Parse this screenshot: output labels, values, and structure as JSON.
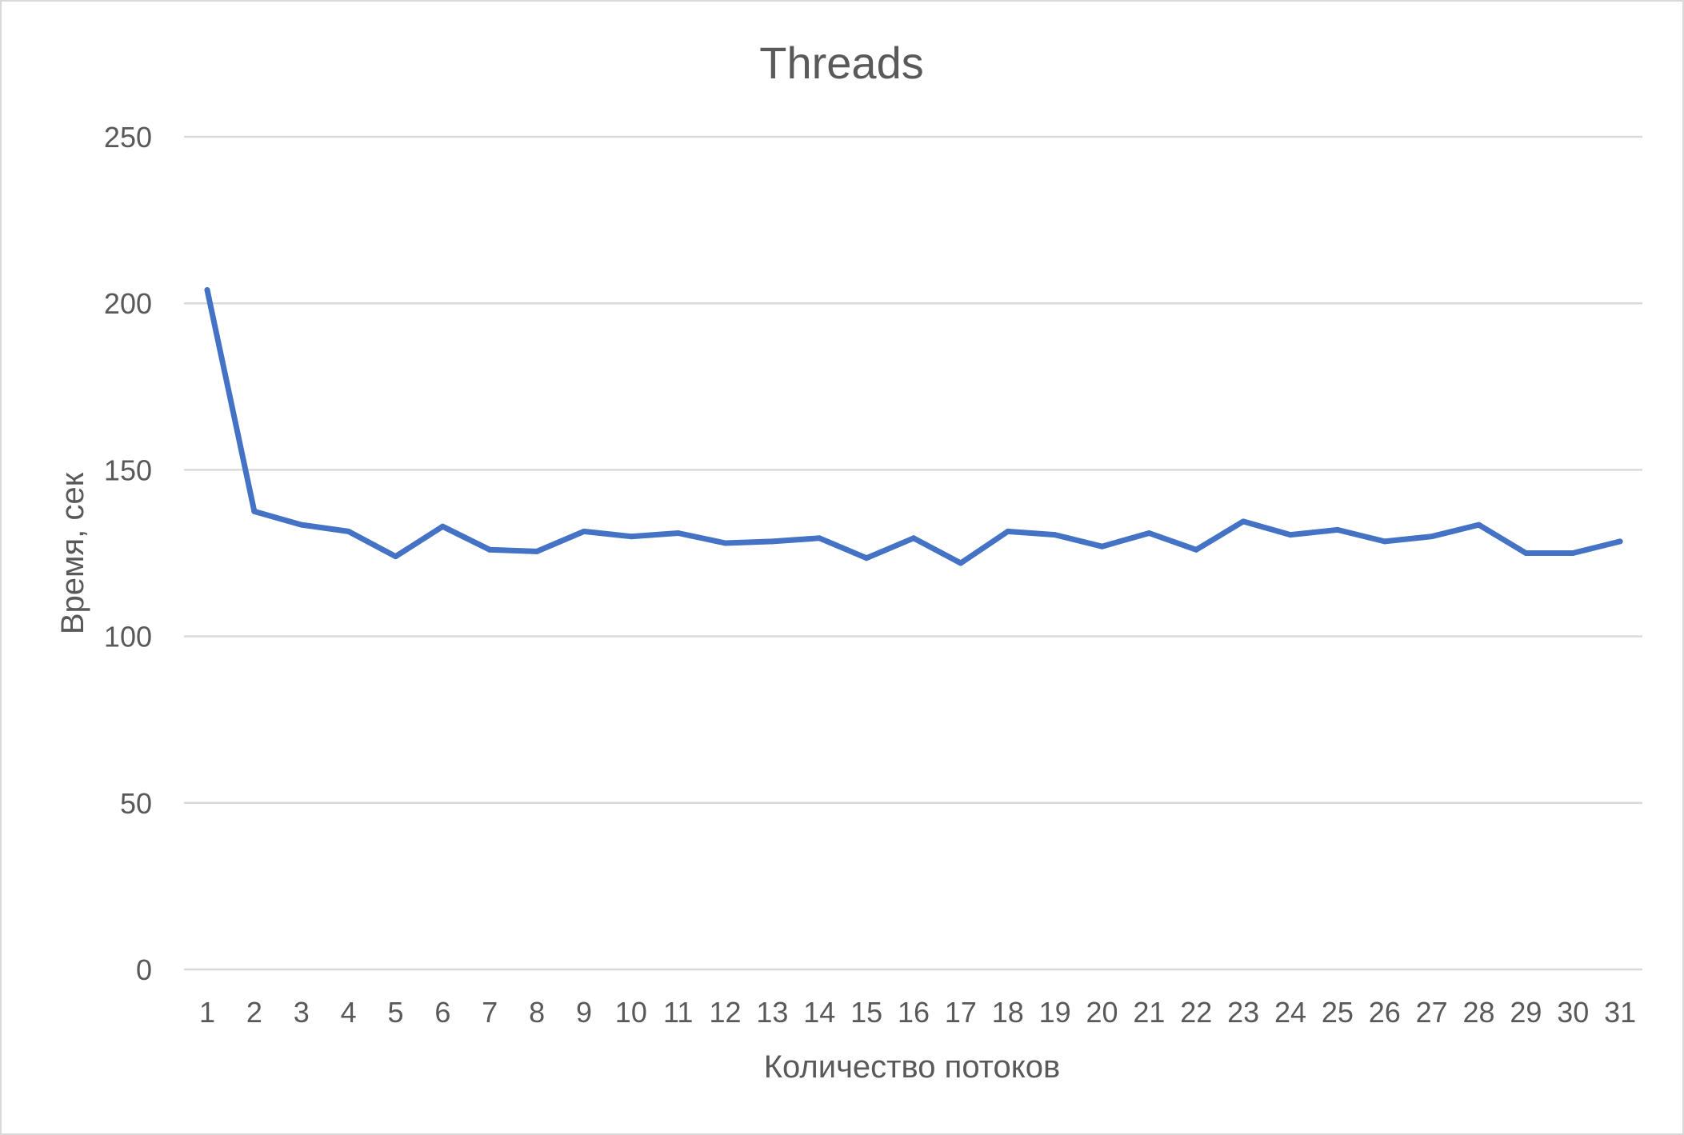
{
  "chart_data": {
    "type": "line",
    "title": "Threads",
    "xlabel": "Количество потоков",
    "ylabel": "Время, сек",
    "categories": [
      "1",
      "2",
      "3",
      "4",
      "5",
      "6",
      "7",
      "8",
      "9",
      "10",
      "11",
      "12",
      "13",
      "14",
      "15",
      "16",
      "17",
      "18",
      "19",
      "20",
      "21",
      "22",
      "23",
      "24",
      "25",
      "26",
      "27",
      "28",
      "29",
      "30",
      "31"
    ],
    "series": [
      {
        "values": [
          204,
          137.5,
          133.5,
          131.5,
          124,
          133,
          126,
          125.5,
          131.5,
          130,
          131,
          128,
          128.5,
          129.5,
          123.5,
          129.5,
          122,
          131.5,
          130.5,
          127,
          131,
          126,
          134.5,
          130.5,
          132,
          128.5,
          130,
          133.5,
          125,
          125,
          128.5
        ]
      }
    ],
    "ylim": [
      0,
      250
    ],
    "yticks": [
      0,
      50,
      100,
      150,
      200,
      250
    ],
    "grid": true,
    "legend": "none",
    "colors": {
      "series": "#4472c4",
      "grid": "#d9d9d9",
      "text": "#595959"
    }
  }
}
